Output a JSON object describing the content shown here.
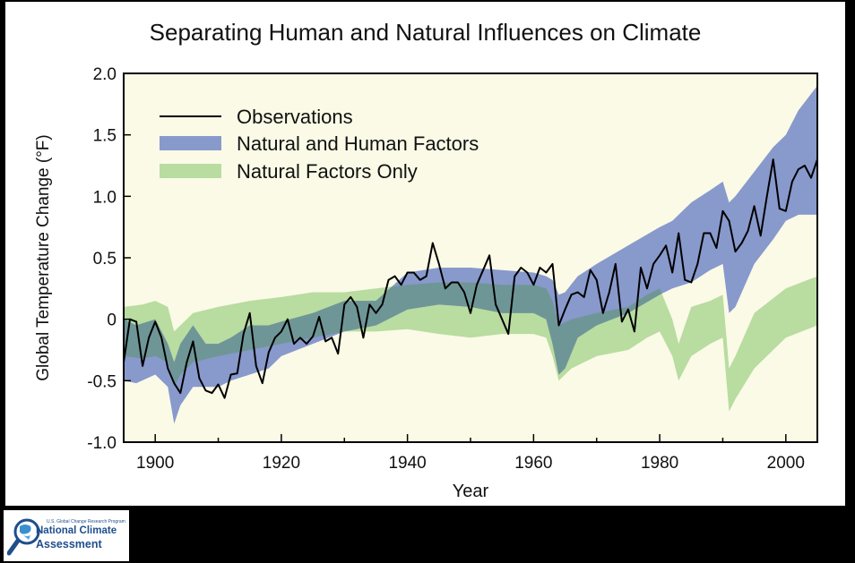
{
  "chart_data": {
    "type": "line",
    "title": "Separating Human and Natural Influences on Climate",
    "xlabel": "Year",
    "ylabel": "Global Temperature Change (°F)",
    "xlim": [
      1895,
      2005
    ],
    "ylim": [
      -1.0,
      2.0
    ],
    "x_ticks": [
      1900,
      1920,
      1940,
      1960,
      1980,
      2000
    ],
    "y_ticks": [
      2.0,
      1.5,
      1.0,
      0.5,
      0,
      -0.5,
      -1.0
    ],
    "y_tick_labels": [
      "2.0",
      "1.5",
      "1.0",
      "0.5",
      "0",
      "-0.5",
      "-1.0"
    ],
    "grid": false,
    "legend_position": "top-left",
    "legend": [
      "Observations",
      "Natural and Human Factors",
      "Natural Factors Only"
    ],
    "colors": {
      "plot_background": "#fafae6",
      "natural_human_band": "#8899cc",
      "natural_band": "#b9dca1",
      "overlap": "#6f9696",
      "observations": "#000000"
    },
    "series": [
      {
        "name": "Observations",
        "style": "line",
        "x": [
          1895,
          1896,
          1897,
          1898,
          1899,
          1900,
          1901,
          1902,
          1903,
          1904,
          1905,
          1906,
          1907,
          1908,
          1909,
          1910,
          1911,
          1912,
          1913,
          1914,
          1915,
          1916,
          1917,
          1918,
          1919,
          1920,
          1921,
          1922,
          1923,
          1924,
          1925,
          1926,
          1927,
          1928,
          1929,
          1930,
          1931,
          1932,
          1933,
          1934,
          1935,
          1936,
          1937,
          1938,
          1939,
          1940,
          1941,
          1942,
          1943,
          1944,
          1945,
          1946,
          1947,
          1948,
          1949,
          1950,
          1951,
          1952,
          1953,
          1954,
          1955,
          1956,
          1957,
          1958,
          1959,
          1960,
          1961,
          1962,
          1963,
          1964,
          1965,
          1966,
          1967,
          1968,
          1969,
          1970,
          1971,
          1972,
          1973,
          1974,
          1975,
          1976,
          1977,
          1978,
          1979,
          1980,
          1981,
          1982,
          1983,
          1984,
          1985,
          1986,
          1987,
          1988,
          1989,
          1990,
          1991,
          1992,
          1993,
          1994,
          1995,
          1996,
          1997,
          1998,
          1999,
          2000,
          2001,
          2002,
          2003,
          2004,
          2005
        ],
        "values": [
          -0.35,
          0.0,
          -0.02,
          -0.38,
          -0.15,
          -0.02,
          -0.15,
          -0.4,
          -0.52,
          -0.6,
          -0.35,
          -0.18,
          -0.48,
          -0.58,
          -0.6,
          -0.53,
          -0.64,
          -0.45,
          -0.44,
          -0.12,
          0.05,
          -0.38,
          -0.52,
          -0.27,
          -0.15,
          -0.1,
          0.0,
          -0.2,
          -0.15,
          -0.2,
          -0.14,
          0.02,
          -0.18,
          -0.15,
          -0.28,
          0.12,
          0.18,
          0.1,
          -0.15,
          0.12,
          0.05,
          0.12,
          0.32,
          0.35,
          0.28,
          0.38,
          0.38,
          0.32,
          0.35,
          0.62,
          0.45,
          0.25,
          0.3,
          0.3,
          0.22,
          0.05,
          0.28,
          0.4,
          0.52,
          0.12,
          0.0,
          -0.12,
          0.35,
          0.42,
          0.38,
          0.28,
          0.42,
          0.38,
          0.45,
          -0.05,
          0.08,
          0.2,
          0.22,
          0.18,
          0.4,
          0.32,
          0.05,
          0.22,
          0.45,
          -0.02,
          0.08,
          -0.1,
          0.42,
          0.25,
          0.45,
          0.52,
          0.6,
          0.38,
          0.7,
          0.32,
          0.3,
          0.45,
          0.7,
          0.7,
          0.58,
          0.88,
          0.8,
          0.55,
          0.62,
          0.72,
          0.92,
          0.68,
          1.0,
          1.3,
          0.9,
          0.88,
          1.12,
          1.22,
          1.25,
          1.15,
          1.3
        ]
      },
      {
        "name": "Natural and Human Factors",
        "style": "band",
        "x": [
          1895,
          1897,
          1900,
          1902,
          1903,
          1904,
          1906,
          1908,
          1910,
          1912,
          1915,
          1918,
          1920,
          1925,
          1930,
          1935,
          1940,
          1945,
          1950,
          1955,
          1960,
          1962,
          1963,
          1964,
          1965,
          1967,
          1970,
          1975,
          1980,
          1982,
          1985,
          1988,
          1990,
          1991,
          1992,
          1995,
          1998,
          2000,
          2002,
          2005
        ],
        "upper": [
          0.0,
          -0.05,
          0.0,
          -0.2,
          -0.35,
          -0.2,
          -0.05,
          -0.2,
          -0.2,
          -0.15,
          -0.05,
          -0.05,
          -0.02,
          0.05,
          0.15,
          0.15,
          0.38,
          0.42,
          0.42,
          0.4,
          0.38,
          0.35,
          0.32,
          0.2,
          0.22,
          0.35,
          0.45,
          0.6,
          0.75,
          0.8,
          0.95,
          1.05,
          1.12,
          0.95,
          1.0,
          1.2,
          1.4,
          1.5,
          1.7,
          1.9
        ],
        "lower": [
          -0.5,
          -0.52,
          -0.45,
          -0.55,
          -0.85,
          -0.7,
          -0.55,
          -0.55,
          -0.55,
          -0.5,
          -0.45,
          -0.4,
          -0.3,
          -0.2,
          -0.1,
          -0.05,
          0.08,
          0.12,
          0.1,
          0.05,
          0.05,
          0.0,
          -0.2,
          -0.45,
          -0.4,
          -0.15,
          -0.05,
          0.05,
          0.2,
          0.25,
          0.3,
          0.4,
          0.45,
          0.05,
          0.1,
          0.45,
          0.65,
          0.8,
          0.85,
          0.85
        ]
      },
      {
        "name": "Natural Factors Only",
        "style": "band",
        "x": [
          1895,
          1898,
          1900,
          1902,
          1903,
          1904,
          1906,
          1910,
          1915,
          1920,
          1925,
          1930,
          1935,
          1940,
          1945,
          1950,
          1955,
          1960,
          1962,
          1963,
          1964,
          1966,
          1970,
          1975,
          1978,
          1980,
          1982,
          1983,
          1985,
          1988,
          1990,
          1991,
          1992,
          1995,
          2000,
          2005
        ],
        "upper": [
          0.1,
          0.12,
          0.15,
          0.1,
          -0.1,
          -0.05,
          0.05,
          0.1,
          0.15,
          0.18,
          0.22,
          0.22,
          0.25,
          0.28,
          0.3,
          0.3,
          0.28,
          0.28,
          0.25,
          0.15,
          -0.05,
          0.0,
          0.05,
          0.1,
          0.2,
          0.25,
          0.0,
          -0.2,
          0.1,
          0.15,
          0.2,
          -0.4,
          -0.3,
          0.05,
          0.25,
          0.35
        ],
        "lower": [
          -0.3,
          -0.32,
          -0.3,
          -0.35,
          -0.55,
          -0.45,
          -0.35,
          -0.3,
          -0.25,
          -0.2,
          -0.15,
          -0.1,
          -0.1,
          -0.08,
          -0.12,
          -0.15,
          -0.12,
          -0.12,
          -0.15,
          -0.3,
          -0.5,
          -0.4,
          -0.3,
          -0.25,
          -0.15,
          -0.1,
          -0.3,
          -0.5,
          -0.3,
          -0.2,
          -0.15,
          -0.75,
          -0.65,
          -0.4,
          -0.15,
          -0.05
        ]
      }
    ]
  },
  "logo": {
    "small_text": "U.S. Global Change Research Program",
    "line1": "National Climate",
    "line2": "Assessment"
  }
}
